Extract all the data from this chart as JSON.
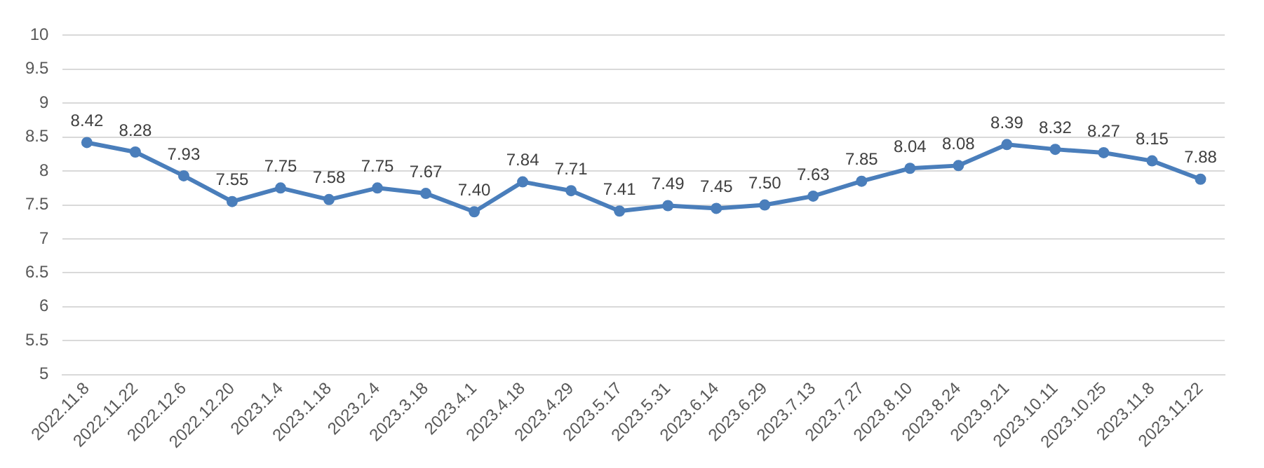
{
  "chart_data": {
    "type": "line",
    "categories": [
      "2022.11.8",
      "2022.11.22",
      "2022.12.6",
      "2022.12.20",
      "2023.1.4",
      "2023.1.18",
      "2023.2.4",
      "2023.3.18",
      "2023.4.1",
      "2023.4.18",
      "2023.4.29",
      "2023.5.17",
      "2023.5.31",
      "2023.6.14",
      "2023.6.29",
      "2023.7.13",
      "2023.7.27",
      "2023.8.10",
      "2023.8.24",
      "2023.9.21",
      "2023.10.11",
      "2023.10.25",
      "2023.11.8",
      "2023.11.22"
    ],
    "series": [
      {
        "color": "#4a7ebb",
        "values": [
          8.42,
          8.28,
          7.93,
          7.55,
          7.75,
          7.58,
          7.75,
          7.67,
          7.4,
          7.84,
          7.71,
          7.41,
          7.49,
          7.45,
          7.5,
          7.63,
          7.85,
          8.04,
          8.08,
          8.39,
          8.32,
          8.27,
          8.15,
          7.88
        ],
        "value_labels": [
          "8.42",
          "8.28",
          "7.93",
          "7.55",
          "7.75",
          "7.58",
          "7.75",
          "7.67",
          "7.40",
          "7.84",
          "7.71",
          "7.41",
          "7.49",
          "7.45",
          "7.50",
          "7.63",
          "7.85",
          "8.04",
          "8.08",
          "8.39",
          "8.32",
          "8.27",
          "8.15",
          "7.88"
        ]
      }
    ],
    "ylim": [
      5,
      10
    ],
    "yticks": [
      5,
      5.5,
      6,
      6.5,
      7,
      7.5,
      8,
      8.5,
      9,
      9.5,
      10
    ],
    "grid": "y",
    "marker": "circle",
    "line_style": "solid",
    "legend": false
  }
}
